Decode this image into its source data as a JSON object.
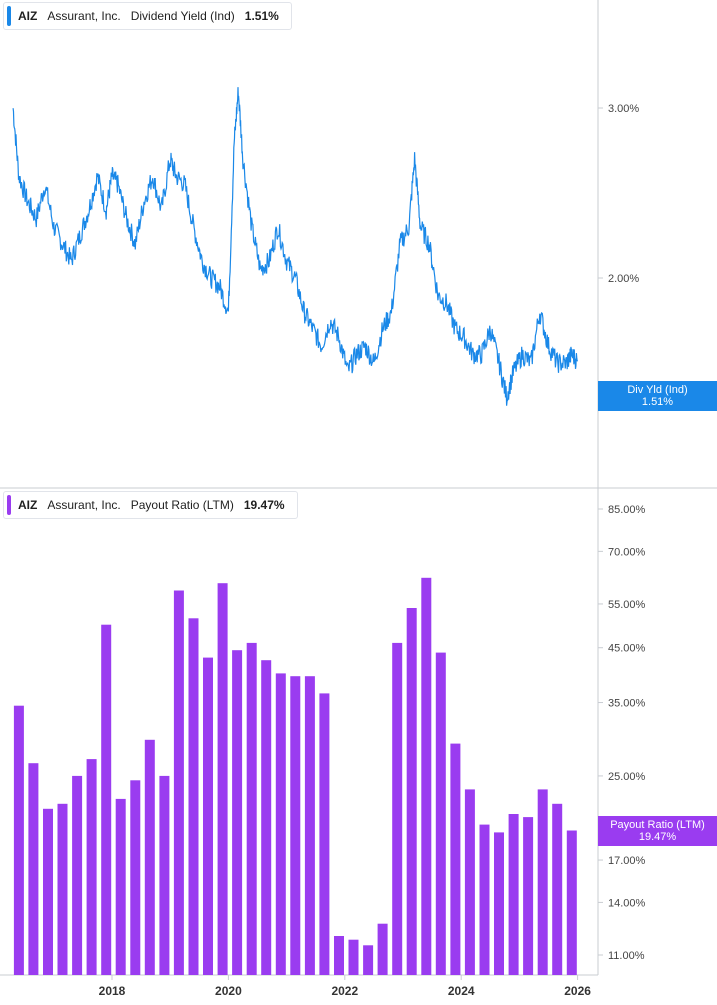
{
  "colors": {
    "yield": "#1a88e8",
    "payout": "#9a3cf0",
    "axis": "#c8ccd2",
    "text": "#444444"
  },
  "legend_top": {
    "ticker": "AIZ",
    "name": "Assurant, Inc.",
    "series": "Dividend Yield (Ind)",
    "value": "1.51%"
  },
  "legend_bottom": {
    "ticker": "AIZ",
    "name": "Assurant, Inc.",
    "series": "Payout Ratio (LTM)",
    "value": "19.47%"
  },
  "flag_top": {
    "label": "Div Yld (Ind)",
    "value": "1.51%"
  },
  "flag_bottom": {
    "label": "Payout Ratio (LTM)",
    "value": "19.47%"
  },
  "chart_data": [
    {
      "type": "line",
      "series": [
        {
          "name": "Dividend Yield (Ind)",
          "x": [
            2016.3,
            2016.4,
            2016.55,
            2016.7,
            2016.85,
            2017.0,
            2017.15,
            2017.3,
            2017.45,
            2017.6,
            2017.75,
            2017.9,
            2018.0,
            2018.1,
            2018.25,
            2018.4,
            2018.55,
            2018.7,
            2018.85,
            2019.0,
            2019.1,
            2019.25,
            2019.4,
            2019.55,
            2019.7,
            2019.85,
            2020.0,
            2020.1,
            2020.17,
            2020.25,
            2020.4,
            2020.55,
            2020.7,
            2020.85,
            2021.0,
            2021.15,
            2021.3,
            2021.45,
            2021.6,
            2021.75,
            2021.9,
            2022.05,
            2022.2,
            2022.35,
            2022.5,
            2022.65,
            2022.8,
            2022.95,
            2023.1,
            2023.2,
            2023.3,
            2023.45,
            2023.6,
            2023.75,
            2023.9,
            2024.05,
            2024.2,
            2024.35,
            2024.5,
            2024.65,
            2024.78,
            2024.9,
            2025.05,
            2025.2,
            2025.35,
            2025.5,
            2025.65,
            2025.8,
            2025.9,
            2026.0
          ],
          "values": [
            3.0,
            2.6,
            2.45,
            2.35,
            2.55,
            2.3,
            2.2,
            2.1,
            2.25,
            2.4,
            2.6,
            2.4,
            2.6,
            2.55,
            2.35,
            2.2,
            2.45,
            2.6,
            2.4,
            2.7,
            2.6,
            2.55,
            2.3,
            2.1,
            2.0,
            1.95,
            1.8,
            2.8,
            3.1,
            2.7,
            2.3,
            2.05,
            2.1,
            2.3,
            2.1,
            2.0,
            1.8,
            1.7,
            1.6,
            1.75,
            1.65,
            1.45,
            1.55,
            1.6,
            1.5,
            1.7,
            1.8,
            2.2,
            2.3,
            2.7,
            2.3,
            2.2,
            1.9,
            1.85,
            1.7,
            1.65,
            1.55,
            1.55,
            1.7,
            1.5,
            1.3,
            1.45,
            1.55,
            1.5,
            1.8,
            1.6,
            1.5,
            1.5,
            1.55,
            1.51
          ]
        }
      ],
      "y_ticks": [
        "3.00%",
        "2.00%"
      ],
      "ylim": [
        1.0,
        3.3
      ]
    },
    {
      "type": "bar",
      "series": [
        {
          "name": "Payout Ratio (LTM)",
          "x": [
            2016.4,
            2016.65,
            2016.9,
            2017.15,
            2017.4,
            2017.65,
            2017.9,
            2018.15,
            2018.4,
            2018.65,
            2018.9,
            2019.15,
            2019.4,
            2019.65,
            2019.9,
            2020.15,
            2020.4,
            2020.65,
            2020.9,
            2021.15,
            2021.4,
            2021.65,
            2021.9,
            2022.15,
            2022.4,
            2022.65,
            2022.9,
            2023.15,
            2023.4,
            2023.65,
            2023.9,
            2024.15,
            2024.4,
            2024.65,
            2024.9,
            2025.15,
            2025.4,
            2025.65,
            2025.9
          ],
          "values": [
            34.5,
            26.5,
            21.5,
            22.0,
            25.0,
            27.0,
            50.0,
            22.5,
            24.5,
            29.5,
            25.0,
            58.5,
            51.5,
            43.0,
            60.5,
            44.5,
            46.0,
            42.5,
            40.0,
            39.5,
            39.5,
            36.5,
            12.0,
            11.8,
            11.5,
            12.7,
            46.0,
            54.0,
            62.0,
            44.0,
            29.0,
            23.5,
            20.0,
            19.3,
            21.0,
            20.7,
            23.5,
            22.0,
            19.47
          ]
        }
      ],
      "y_ticks": [
        "85.00%",
        "70.00%",
        "55.00%",
        "45.00%",
        "35.00%",
        "25.00%",
        "17.00%",
        "14.00%",
        "11.00%"
      ],
      "ylim": [
        10,
        90
      ],
      "scale": "log"
    }
  ],
  "x_axis": {
    "ticks": [
      "2018",
      "2020",
      "2022",
      "2024",
      "2026"
    ]
  }
}
